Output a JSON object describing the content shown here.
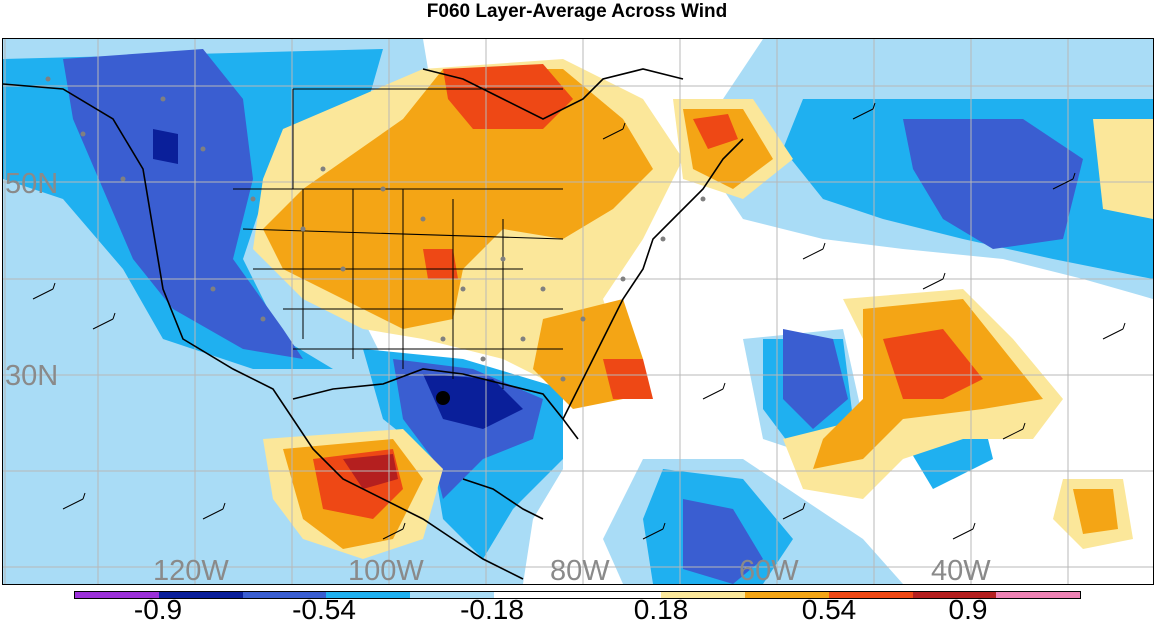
{
  "title": "F060 Layer-Average Across Wind",
  "lat_labels": [
    "50N",
    "30N"
  ],
  "lon_labels": [
    "120W",
    "100W",
    "80W",
    "60W",
    "40W"
  ],
  "colorbar": {
    "colors": [
      "#9b30d9",
      "#0a1f9a",
      "#3a5ed1",
      "#1fb0f0",
      "#a9dcf6",
      "#ffffff",
      "#ffffff",
      "#fbe79a",
      "#f4a515",
      "#ee4815",
      "#b41f1f",
      "#ee82b4"
    ],
    "labels": [
      "-0.9",
      "-0.54",
      "-0.18",
      "0.18",
      "0.54",
      "0.9"
    ]
  }
}
